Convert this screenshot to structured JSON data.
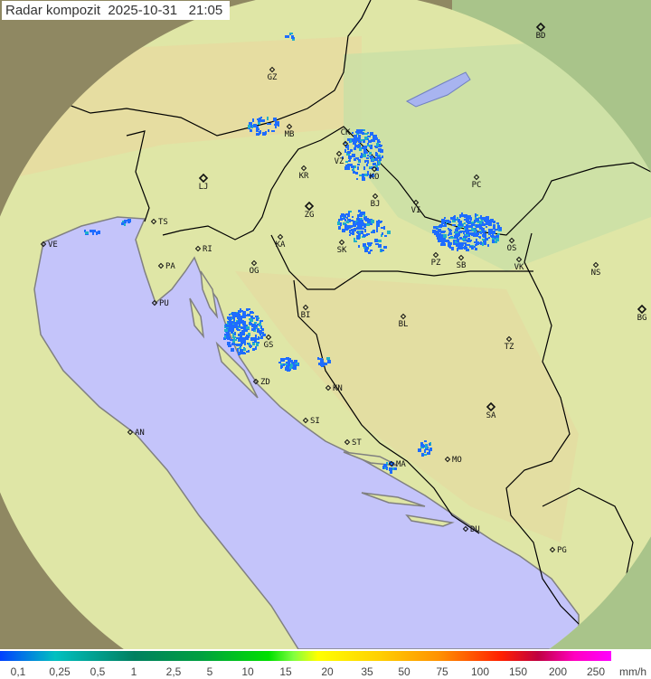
{
  "title": {
    "label": "Radar kompozit",
    "date": "2025-10-31",
    "time": "21:05"
  },
  "colors": {
    "sea": "#c4c4fa",
    "land": "#dfe8a8",
    "outside_radar": "#8a8460",
    "border": "#000000",
    "coast": "#808080",
    "rain_light": "#1e6cff",
    "rain_medium": "#20b0c8"
  },
  "cities": [
    "BD",
    "GZ",
    "MB",
    "CK",
    "VZ",
    "KR",
    "LJ",
    "KO",
    "PC",
    "TS",
    "VE",
    "ZG",
    "BJ",
    "VI",
    "KA",
    "RI",
    "SK",
    "OS",
    "PA",
    "OG",
    "PZ",
    "SB",
    "VK",
    "NS",
    "PU",
    "BI",
    "BL",
    "BG",
    "GS",
    "TZ",
    "ZD",
    "KN",
    "SA",
    "AN",
    "SI",
    "ST",
    "MO",
    "MA",
    "DU",
    "PG"
  ],
  "legend": {
    "ticks": [
      "0,1",
      "0,25",
      "0,5",
      "1",
      "2,5",
      "5",
      "10",
      "15",
      "20",
      "35",
      "50",
      "75",
      "100",
      "150",
      "200",
      "250"
    ],
    "unit": "mm/h"
  }
}
